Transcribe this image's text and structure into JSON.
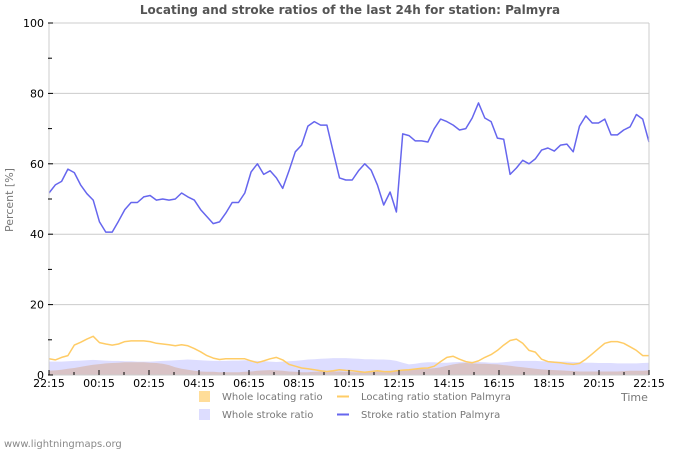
{
  "chart_data": {
    "type": "line",
    "title": "Locating and stroke ratios of the last 24h for station: Palmyra",
    "xlabel": "Time",
    "ylabel": "Percent   [%]",
    "ylim": [
      0,
      100
    ],
    "yticks": [
      0,
      20,
      40,
      60,
      80,
      100
    ],
    "xtick_labels": [
      "22:15",
      "00:15",
      "02:15",
      "04:15",
      "06:15",
      "08:15",
      "10:15",
      "12:15",
      "14:15",
      "16:15",
      "18:15",
      "20:15",
      "22:15"
    ],
    "grid": true,
    "legend_position": "bottom",
    "series": [
      {
        "name": "Whole locating ratio",
        "style": "area",
        "color": "#ffdd99",
        "values": [
          1.2,
          1.3,
          1.5,
          1.8,
          2.0,
          2.3,
          2.6,
          2.9,
          3.1,
          3.3,
          3.4,
          3.5,
          3.6,
          3.6,
          3.6,
          3.6,
          3.5,
          3.4,
          3.2,
          2.8,
          2.2,
          1.8,
          1.5,
          1.2,
          1.0,
          0.9,
          0.9,
          0.8,
          0.8,
          0.8,
          0.8,
          0.9,
          1.0,
          1.2,
          1.3,
          1.4,
          1.3,
          1.2,
          1.0,
          0.9,
          0.8,
          0.8,
          0.9,
          1.0,
          1.0,
          1.0,
          1.0,
          0.9,
          0.8,
          0.8,
          0.8,
          0.9,
          1.0,
          1.1,
          1.2,
          1.3,
          1.4,
          1.5,
          1.6,
          1.7,
          1.8,
          1.9,
          2.2,
          2.6,
          3.0,
          3.3,
          3.4,
          3.3,
          3.2,
          3.2,
          3.1,
          3.0,
          2.8,
          2.6,
          2.4,
          2.2,
          2.0,
          1.8,
          1.6,
          1.5,
          1.4,
          1.3,
          1.2,
          1.1,
          1.0,
          1.0,
          1.0,
          1.0,
          1.0,
          1.0,
          1.0,
          1.1,
          1.2,
          1.2,
          1.2,
          1.3
        ]
      },
      {
        "name": "Locating ratio station Palmyra",
        "style": "line",
        "color": "#ffcc66",
        "values": [
          4.6,
          4.3,
          5.0,
          5.5,
          8.5,
          9.3,
          10.2,
          11.0,
          9.2,
          8.8,
          8.5,
          8.8,
          9.5,
          9.7,
          9.7,
          9.7,
          9.5,
          9.0,
          8.8,
          8.6,
          8.3,
          8.6,
          8.3,
          7.5,
          6.6,
          5.5,
          4.8,
          4.4,
          4.6,
          4.6,
          4.6,
          4.6,
          4.0,
          3.5,
          4.0,
          4.6,
          5.0,
          4.3,
          3.0,
          2.5,
          2.0,
          1.8,
          1.5,
          1.2,
          1.0,
          1.2,
          1.5,
          1.3,
          1.2,
          1.0,
          0.8,
          1.0,
          1.2,
          1.0,
          0.9,
          1.2,
          1.4,
          1.5,
          1.7,
          1.9,
          2.0,
          2.5,
          3.8,
          5.0,
          5.3,
          4.5,
          3.8,
          3.5,
          4.0,
          5.0,
          5.8,
          7.0,
          8.5,
          9.8,
          10.2,
          9.0,
          7.0,
          6.5,
          4.5,
          3.8,
          3.6,
          3.5,
          3.2,
          3.0,
          3.3,
          4.5,
          6.0,
          7.5,
          9.0,
          9.5,
          9.5,
          9.0,
          8.0,
          7.0,
          5.5,
          5.5
        ]
      },
      {
        "name": "Whole stroke ratio",
        "style": "area",
        "color": "#ddddff",
        "values": [
          3.8,
          3.8,
          3.8,
          3.9,
          4.0,
          4.1,
          4.2,
          4.3,
          4.2,
          4.1,
          4.0,
          4.0,
          3.9,
          3.9,
          3.8,
          3.8,
          3.8,
          3.9,
          4.0,
          4.1,
          4.2,
          4.3,
          4.4,
          4.3,
          4.2,
          4.1,
          4.0,
          4.0,
          4.0,
          4.1,
          4.1,
          4.2,
          4.1,
          4.0,
          3.9,
          3.8,
          3.7,
          3.8,
          3.9,
          4.0,
          4.2,
          4.4,
          4.5,
          4.6,
          4.7,
          4.8,
          4.8,
          4.8,
          4.7,
          4.6,
          4.5,
          4.5,
          4.4,
          4.4,
          4.3,
          4.0,
          3.5,
          3.0,
          3.2,
          3.5,
          3.6,
          3.6,
          3.5,
          3.5,
          3.6,
          3.7,
          3.8,
          3.8,
          3.7,
          3.6,
          3.5,
          3.5,
          3.6,
          3.8,
          4.0,
          4.0,
          4.0,
          4.0,
          3.9,
          3.9,
          3.9,
          3.8,
          3.8,
          3.7,
          3.6,
          3.5,
          3.5,
          3.4,
          3.4,
          3.4,
          3.3,
          3.3,
          3.3,
          3.3,
          3.4,
          3.5
        ]
      },
      {
        "name": "Stroke ratio station Palmyra",
        "style": "line",
        "color": "#6666ee",
        "values": [
          51.7,
          54.0,
          55.0,
          58.5,
          57.5,
          54.0,
          51.5,
          49.7,
          43.5,
          40.6,
          40.6,
          43.7,
          47.0,
          49.0,
          49.0,
          50.6,
          51.0,
          49.7,
          50.0,
          49.7,
          50.0,
          51.7,
          50.6,
          49.7,
          47.0,
          45.0,
          43.0,
          43.5,
          46.0,
          49.0,
          49.0,
          51.7,
          57.7,
          60.0,
          57.0,
          58.0,
          56.0,
          53.0,
          58.0,
          63.4,
          65.3,
          70.7,
          72.0,
          71.0,
          71.0,
          63.4,
          56.0,
          55.4,
          55.4,
          58.0,
          60.0,
          58.2,
          54.0,
          48.3,
          52.0,
          46.3,
          68.5,
          68.0,
          66.5,
          66.5,
          66.2,
          70.0,
          72.7,
          72.0,
          71.0,
          69.6,
          70.0,
          73.0,
          77.3,
          73.0,
          72.0,
          67.3,
          67.0,
          57.0,
          58.8,
          61.0,
          60.0,
          61.4,
          63.9,
          64.5,
          63.6,
          65.3,
          65.6,
          63.4,
          70.7,
          73.6,
          71.6,
          71.6,
          72.7,
          68.2,
          68.2,
          69.6,
          70.5,
          74.0,
          72.7,
          66.2
        ]
      }
    ]
  },
  "legend": {
    "items": [
      {
        "label": "Whole locating ratio",
        "swatch": "box",
        "color": "#ffdd99"
      },
      {
        "label": "Locating ratio station Palmyra",
        "swatch": "line",
        "color": "#ffcc66"
      },
      {
        "label": "Whole stroke ratio",
        "swatch": "box",
        "color": "#ddddff"
      },
      {
        "label": "Stroke ratio station Palmyra",
        "swatch": "line",
        "color": "#6666ee"
      }
    ]
  },
  "footer": {
    "credit": "www.lightningmaps.org"
  }
}
